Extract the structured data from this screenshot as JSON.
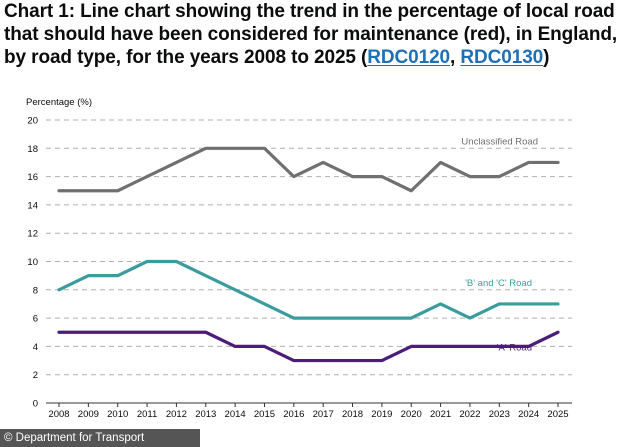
{
  "header": {
    "title_prefix": "Chart 1: Line chart showing the trend in the percentage of local road that should have been considered for maintenance (red), in England, by road type, for the years 2008 to 2025 (",
    "link1": "RDC0120",
    "sep": ", ",
    "link2": "RDC0130",
    "title_suffix": ")"
  },
  "footer": {
    "text": "© Department for Transport"
  },
  "colors": {
    "unclassified": "#707070",
    "bc": "#3a9c9c",
    "a": "#4b1c7a",
    "grid": "#b0b0b0",
    "axis": "#333333"
  },
  "chart_data": {
    "type": "line",
    "title": "",
    "ylabel": "Percentage (%)",
    "xlabel": "",
    "ylim": [
      0,
      20
    ],
    "yticks": [
      0,
      2,
      4,
      6,
      8,
      10,
      12,
      14,
      16,
      18,
      20
    ],
    "x": [
      2008,
      2009,
      2010,
      2011,
      2012,
      2013,
      2014,
      2015,
      2016,
      2017,
      2018,
      2019,
      2020,
      2021,
      2022,
      2023,
      2024,
      2025
    ],
    "grid": "horizontal dashed",
    "series": [
      {
        "name": "Unclassified Road",
        "color_key": "unclassified",
        "values": [
          15,
          15,
          15,
          16,
          17,
          18,
          18,
          18,
          16,
          17,
          16,
          16,
          15,
          17,
          16,
          16,
          17,
          17
        ]
      },
      {
        "name": "'B' and 'C' Road",
        "color_key": "bc",
        "values": [
          8,
          9,
          9,
          10,
          10,
          9,
          8,
          7,
          6,
          6,
          6,
          6,
          6,
          7,
          6,
          7,
          7,
          7
        ]
      },
      {
        "name": "'A' Road",
        "color_key": "a",
        "values": [
          5,
          5,
          5,
          5,
          5,
          5,
          4,
          4,
          3,
          3,
          3,
          3,
          4,
          4,
          4,
          4,
          4,
          5
        ]
      }
    ]
  }
}
